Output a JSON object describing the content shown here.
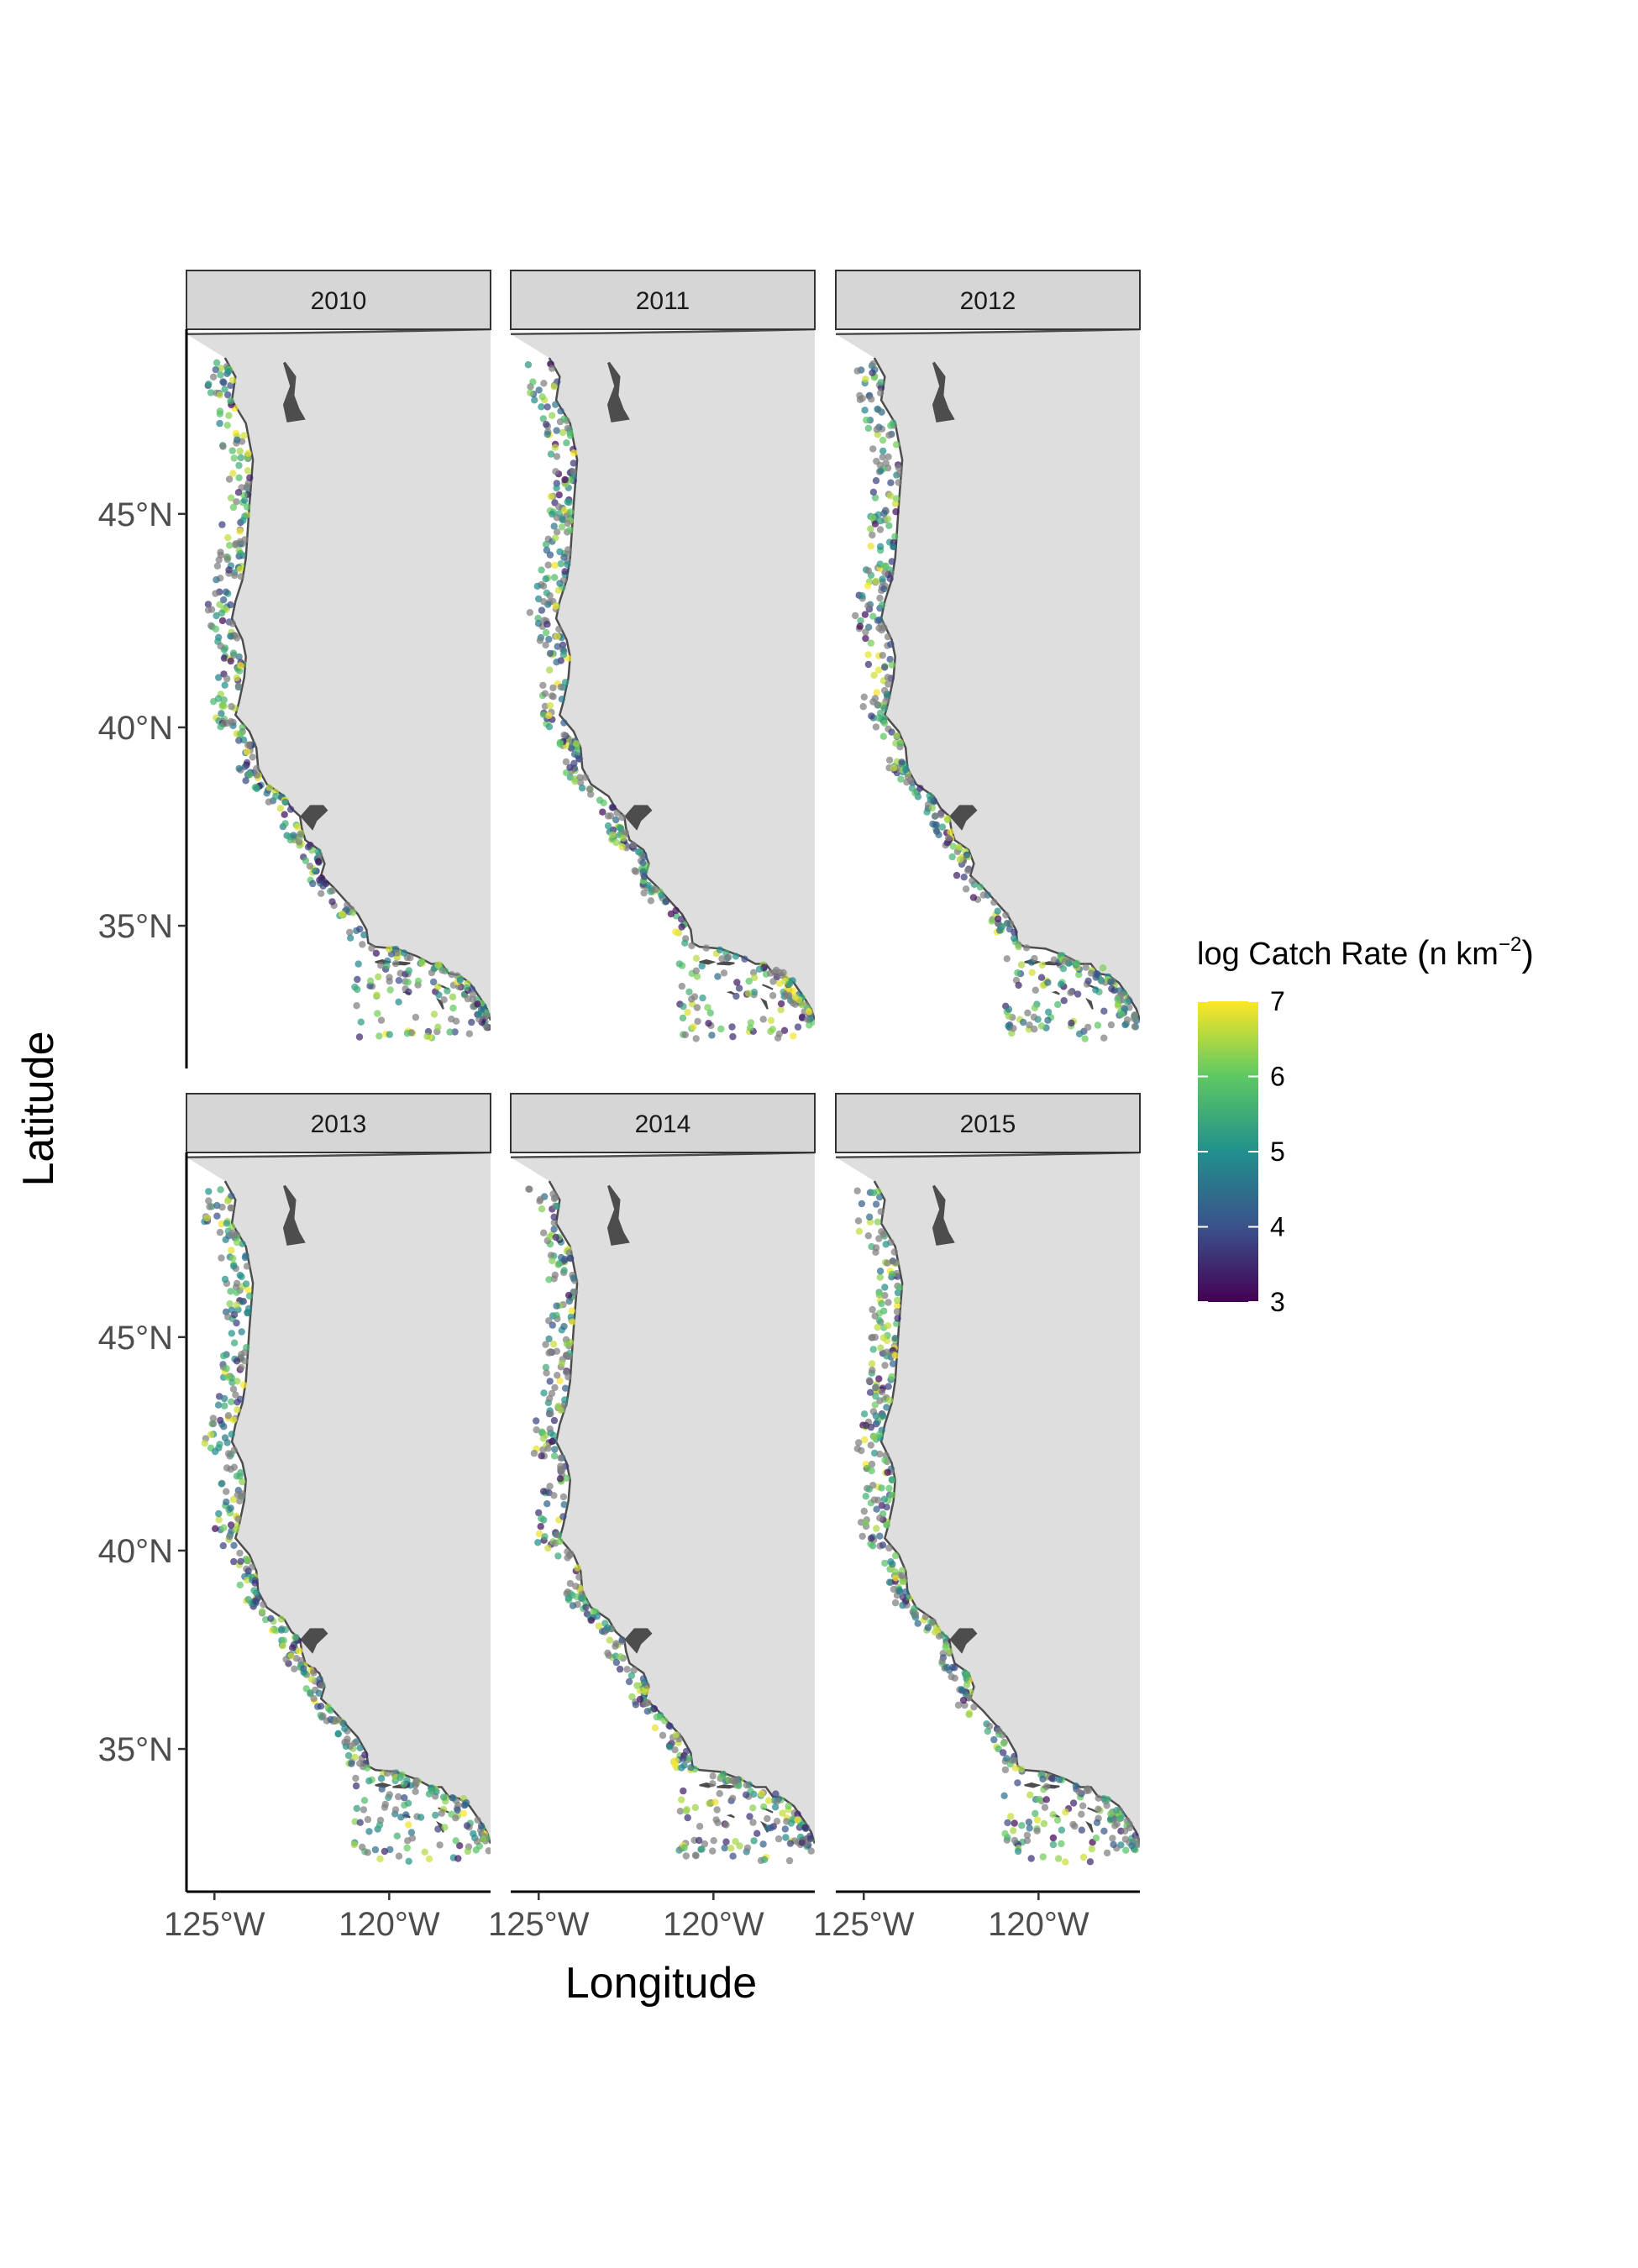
{
  "chart_data": {
    "type": "scatter",
    "map": "faceted point map of sampling stations along the U.S. West Coast",
    "facets": [
      "2010",
      "2011",
      "2012",
      "2013",
      "2014",
      "2015"
    ],
    "facet_layout": {
      "rows": 2,
      "cols": 3
    },
    "xlabel": "Longitude",
    "ylabel": "Latitude",
    "x_ticks": [
      {
        "value": -125,
        "label": "125°W"
      },
      {
        "value": -120,
        "label": "120°W"
      }
    ],
    "y_ticks": [
      {
        "value": 45,
        "label": "45°N"
      },
      {
        "value": 40,
        "label": "40°N"
      },
      {
        "value": 35,
        "label": "35°N"
      }
    ],
    "xlim": [
      -125.8,
      -117.1
    ],
    "ylim": [
      31.2,
      49.0
    ],
    "color_scale": {
      "title_main": "log Catch Rate ",
      "title_unit_base": "n km",
      "title_unit_exp": "−2",
      "palette": "viridis",
      "range": [
        3,
        7
      ],
      "ticks": [
        7,
        6,
        5,
        4,
        3
      ],
      "colors": [
        "#440154",
        "#3b528b",
        "#21908c",
        "#5dc863",
        "#fde725"
      ],
      "zero_catch_color": "#808080"
    },
    "background": {
      "land": "#dedede",
      "ocean": "#ffffff",
      "coastline": "#4d4d4d",
      "strip": "#d6d6d6"
    },
    "legend_position": "right",
    "grid": false,
    "seeds": [
      11,
      23,
      37,
      51,
      67,
      83
    ]
  }
}
